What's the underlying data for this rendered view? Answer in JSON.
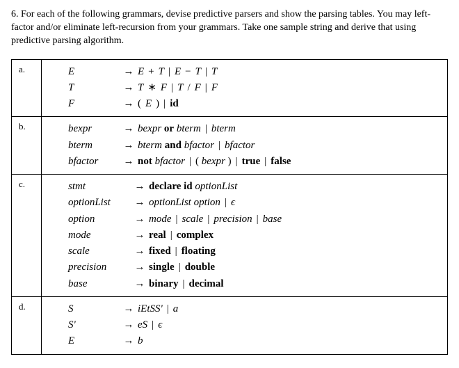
{
  "question": {
    "number": "6.",
    "text": "For each of the following grammars, devise predictive parsers and show the parsing tables. You may left-factor and/or eliminate left-recursion from your grammars. Take one sample string and derive that using predictive parsing algorithm."
  },
  "parts": {
    "a": {
      "label": "a.",
      "rules": [
        {
          "lhs": "E",
          "arrow": "→",
          "rhs_html": "<span class='it'>E</span><span class='sp'></span>+<span class='sp'></span><span class='it'>T</span><span class='bar'>|</span><span class='it'>E</span><span class='sp'></span>−<span class='sp'></span><span class='it'>T</span><span class='bar'>|</span><span class='it'>T</span>"
        },
        {
          "lhs": "T",
          "arrow": "→",
          "rhs_html": "<span class='it'>T</span><span class='sp'></span>∗<span class='sp'></span><span class='it'>F</span><span class='bar'>|</span><span class='it'>T</span><span class='sp'></span>/<span class='sp'></span><span class='it'>F</span><span class='bar'>|</span><span class='it'>F</span>"
        },
        {
          "lhs": "F",
          "arrow": "→",
          "rhs_html": "(<span class='sp'></span><span class='it'>E</span><span class='sp'></span>)<span class='bar'>|</span><span class='bold'>id</span>"
        }
      ]
    },
    "b": {
      "label": "b.",
      "rules": [
        {
          "lhs": "bexpr",
          "arrow": "→",
          "rhs_html": "<span class='it'>bexpr</span> <span class='bold'>or</span> <span class='it'>bterm</span><span class='bar'>|</span><span class='it'>bterm</span>"
        },
        {
          "lhs": "bterm",
          "arrow": "→",
          "rhs_html": "<span class='it'>bterm</span> <span class='bold'>and</span> <span class='it'>bfactor</span><span class='bar'>|</span><span class='it'>bfactor</span>"
        },
        {
          "lhs": "bfactor",
          "arrow": "→",
          "rhs_html": "<span class='bold'>not</span> <span class='it'>bfactor</span><span class='bar'>|</span>( <span class='it'>bexpr</span> )<span class='bar'>|</span><span class='bold'>true</span><span class='bar'>|</span><span class='bold'>false</span>"
        }
      ]
    },
    "c": {
      "label": "c.",
      "rules": [
        {
          "lhs": "stmt",
          "arrow": "→",
          "rhs_html": "<span class='bold'>declare id</span> <span class='it'>optionList</span>"
        },
        {
          "lhs": "optionList",
          "arrow": "→",
          "rhs_html": "<span class='it'>optionList option</span><span class='bar'>|</span><span class='it'>ϵ</span>"
        },
        {
          "lhs": "option",
          "arrow": "→",
          "rhs_html": "<span class='it'>mode</span><span class='bar'>|</span><span class='it'>scale</span><span class='bar'>|</span><span class='it'>precision</span><span class='bar'>|</span><span class='it'>base</span>"
        },
        {
          "lhs": "mode",
          "arrow": "→",
          "rhs_html": "<span class='bold'>real</span><span class='bar'>|</span><span class='bold'>complex</span>"
        },
        {
          "lhs": "scale",
          "arrow": "→",
          "rhs_html": "<span class='bold'>fixed</span><span class='bar'>|</span><span class='bold'>floating</span>"
        },
        {
          "lhs": "precision",
          "arrow": "→",
          "rhs_html": "<span class='bold'>single</span><span class='bar'>|</span><span class='bold'>double</span>"
        },
        {
          "lhs": "base",
          "arrow": "→",
          "rhs_html": "<span class='bold'>binary</span><span class='bar'>|</span><span class='bold'>decimal</span>"
        }
      ]
    },
    "d": {
      "label": "d.",
      "rules": [
        {
          "lhs": "S",
          "arrow": "→",
          "rhs_html": "<span class='it'>iEtSS'</span><span class='bar'>|</span><span class='it'>a</span>"
        },
        {
          "lhs": "S'",
          "arrow": "→",
          "rhs_html": "<span class='it'>eS</span><span class='bar'>|</span><span class='it'>ϵ</span>"
        },
        {
          "lhs": "E",
          "arrow": "→",
          "rhs_html": "<span class='it'>b</span>"
        }
      ]
    }
  },
  "style": {
    "lhs_width_default": 74,
    "lhs_width_wide": 90
  }
}
